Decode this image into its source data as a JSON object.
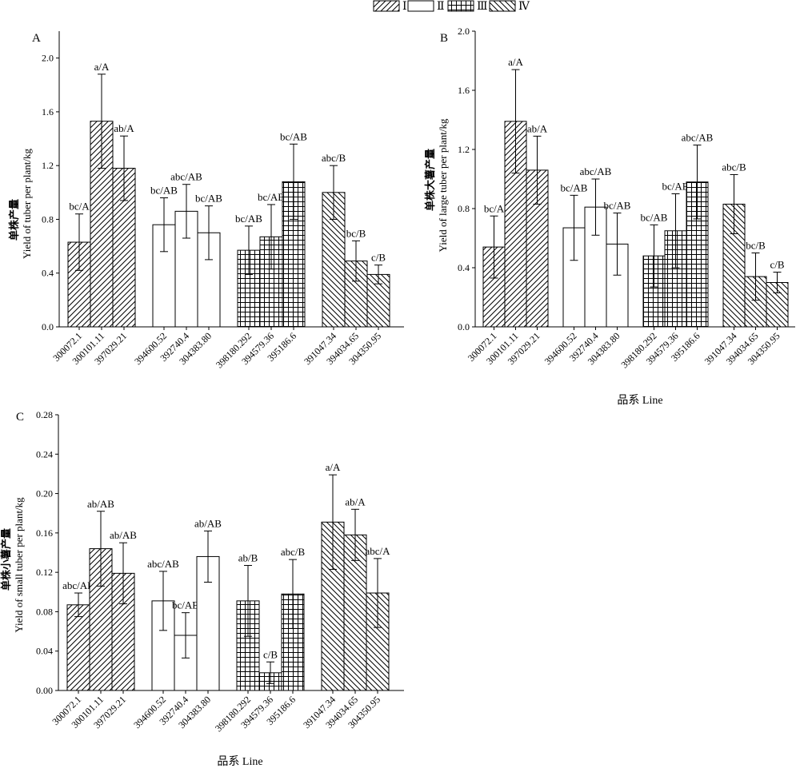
{
  "legend": {
    "position": "top-center",
    "items": [
      {
        "label": "Ⅰ",
        "pattern": "diag-up"
      },
      {
        "label": "Ⅱ",
        "pattern": "open"
      },
      {
        "label": "Ⅲ",
        "pattern": "grid"
      },
      {
        "label": "Ⅳ",
        "pattern": "diag-down"
      }
    ]
  },
  "colors": {
    "bar_stroke": "#000000",
    "bar_fill": "#ffffff"
  },
  "chart_data": [
    {
      "panel": "A",
      "type": "bar",
      "ylabel_cn": "单株产量",
      "ylabel_en": "Yield of tuber per plant/kg",
      "xlabel": "",
      "ylim": [
        0,
        2.2
      ],
      "yticks": [
        "0.0",
        "0.4",
        "0.8",
        "1.2",
        "1.6",
        "2.0"
      ],
      "categories": [
        "300072.1",
        "300101.11",
        "397029.21",
        "394600.52",
        "392740.4",
        "304383.80",
        "398180.292",
        "394579.36",
        "395186.6",
        "391047.34",
        "394034.65",
        "304350.95"
      ],
      "groups": [
        0,
        0,
        0,
        1,
        1,
        1,
        2,
        2,
        2,
        3,
        3,
        3
      ],
      "values": [
        0.63,
        1.53,
        1.18,
        0.76,
        0.86,
        0.7,
        0.57,
        0.67,
        1.08,
        1.0,
        0.49,
        0.39
      ],
      "errors": [
        0.21,
        0.35,
        0.24,
        0.2,
        0.2,
        0.2,
        0.18,
        0.24,
        0.28,
        0.2,
        0.15,
        0.07
      ],
      "labels": [
        "bc/A",
        "a/A",
        "ab/A",
        "bc/AB",
        "abc/AB",
        "bc/AB",
        "bc/AB",
        "bc/AB",
        "bc/AB",
        "abc/B",
        "bc/B",
        "c/B"
      ]
    },
    {
      "panel": "B",
      "type": "bar",
      "ylabel_cn": "单株大薯产量",
      "ylabel_en": "Yield of large tuber per plant/kg",
      "xlabel": "品系 Line",
      "ylim": [
        0,
        2.0
      ],
      "yticks": [
        "0.0",
        "0.4",
        "0.8",
        "1.2",
        "1.6",
        "2.0"
      ],
      "categories": [
        "300072.1",
        "300101.11",
        "397029.21",
        "394600.52",
        "392740.4",
        "304383.80",
        "398180.292",
        "394579.36",
        "395186.6",
        "391047.34",
        "394034.65",
        "304350.95"
      ],
      "groups": [
        0,
        0,
        0,
        1,
        1,
        1,
        2,
        2,
        2,
        3,
        3,
        3
      ],
      "values": [
        0.54,
        1.39,
        1.06,
        0.67,
        0.81,
        0.56,
        0.48,
        0.65,
        0.98,
        0.83,
        0.34,
        0.3
      ],
      "errors": [
        0.21,
        0.35,
        0.23,
        0.22,
        0.19,
        0.21,
        0.21,
        0.25,
        0.25,
        0.2,
        0.16,
        0.07
      ],
      "labels": [
        "bc/A",
        "a/A",
        "ab/A",
        "bc/AB",
        "abc/AB",
        "bc/AB",
        "bc/AB",
        "bc/AB",
        "abc/AB",
        "abc/B",
        "bc/B",
        "c/B"
      ]
    },
    {
      "panel": "C",
      "type": "bar",
      "ylabel_cn": "单株小薯产量",
      "ylabel_en": "Yield of small tuber per plant/kg",
      "xlabel": "品系 Line",
      "ylim": [
        0,
        0.28
      ],
      "yticks": [
        "0.00",
        "0.04",
        "0.08",
        "0.12",
        "0.16",
        "0.20",
        "0.24",
        "0.28"
      ],
      "categories": [
        "300072.1",
        "300101.11",
        "397029.21",
        "394600.52",
        "392740.4",
        "304383.80",
        "398180.292",
        "394579.36",
        "395186.6",
        "391047.34",
        "394034.65",
        "304350.95"
      ],
      "groups": [
        0,
        0,
        0,
        1,
        1,
        1,
        2,
        2,
        2,
        3,
        3,
        3
      ],
      "values": [
        0.087,
        0.144,
        0.119,
        0.091,
        0.056,
        0.136,
        0.091,
        0.018,
        0.098,
        0.171,
        0.158,
        0.099
      ],
      "errors": [
        0.012,
        0.038,
        0.031,
        0.03,
        0.023,
        0.026,
        0.036,
        0.011,
        0.035,
        0.048,
        0.026,
        0.035
      ],
      "labels": [
        "abc/AB",
        "ab/AB",
        "ab/AB",
        "abc/AB",
        "bc/AB",
        "ab/AB",
        "ab/B",
        "c/B",
        "abc/B",
        "a/A",
        "ab/A",
        "abc/A"
      ]
    }
  ]
}
